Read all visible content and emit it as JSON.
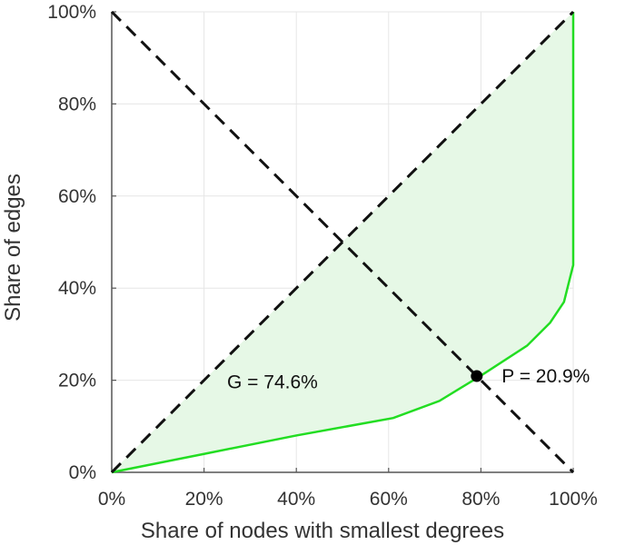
{
  "chart_data": {
    "type": "line",
    "title": "",
    "xlabel": "Share of nodes with smallest degrees",
    "ylabel": "Share of edges",
    "xlim": [
      0,
      100
    ],
    "ylim": [
      0,
      100
    ],
    "x_ticks": [
      "0%",
      "20%",
      "40%",
      "60%",
      "80%",
      "100%"
    ],
    "y_ticks": [
      "0%",
      "20%",
      "40%",
      "60%",
      "80%",
      "100%"
    ],
    "grid": true,
    "legend": "none",
    "series": [
      {
        "role": "lorenz-curve",
        "color": "#22dd22",
        "points": [
          [
            0,
            0
          ],
          [
            20,
            4
          ],
          [
            40,
            8
          ],
          [
            61,
            11.8
          ],
          [
            71,
            15.5
          ],
          [
            80,
            21
          ],
          [
            90,
            27.5
          ],
          [
            95,
            32.5
          ],
          [
            98,
            37
          ],
          [
            99.5,
            43
          ],
          [
            100,
            45
          ],
          [
            100,
            60
          ],
          [
            100,
            80
          ],
          [
            100,
            100
          ]
        ]
      },
      {
        "role": "equality-line",
        "style": "dashed",
        "color": "#111111",
        "points": [
          [
            0,
            0
          ],
          [
            100,
            100
          ]
        ]
      },
      {
        "role": "anti-diagonal",
        "style": "dashed",
        "color": "#111111",
        "points": [
          [
            0,
            100
          ],
          [
            100,
            0
          ]
        ]
      }
    ],
    "area": {
      "between": [
        "equality-line",
        "lorenz-curve"
      ],
      "color": "#e6f8e6"
    },
    "marker": {
      "x": 79.1,
      "y": 20.9,
      "color": "#000000"
    },
    "annotations": {
      "gini": {
        "text": "G = 74.6%",
        "x": 25,
        "y": 19.6
      },
      "point": {
        "text": "P = 20.9%",
        "x": 84.5,
        "y": 20.9
      }
    }
  }
}
